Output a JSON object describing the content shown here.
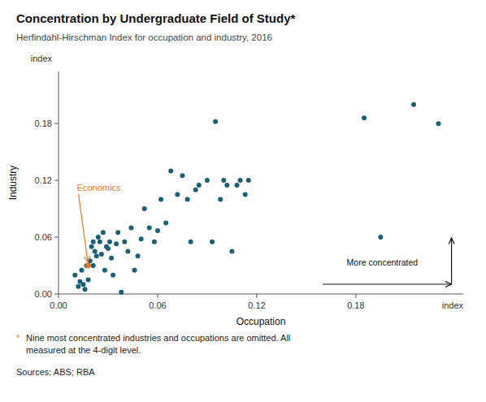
{
  "chart_data": {
    "type": "scatter",
    "title": "Concentration by Undergraduate Field of Study*",
    "subtitle": "Herfindahl-Hirschman Index for occupation and industry, 2016",
    "x_label": "Occupation",
    "y_label": "Industry",
    "x_unit": "index",
    "y_unit": "index",
    "color": "#1b5e75",
    "x": [
      0.01,
      0.012,
      0.013,
      0.014,
      0.015,
      0.016,
      0.017,
      0.018,
      0.019,
      0.02,
      0.021,
      0.021,
      0.022,
      0.023,
      0.024,
      0.025,
      0.026,
      0.027,
      0.028,
      0.029,
      0.03,
      0.031,
      0.032,
      0.033,
      0.035,
      0.036,
      0.038,
      0.04,
      0.042,
      0.044,
      0.046,
      0.048,
      0.05,
      0.052,
      0.055,
      0.058,
      0.06,
      0.062,
      0.065,
      0.068,
      0.072,
      0.075,
      0.078,
      0.08,
      0.083,
      0.085,
      0.09,
      0.093,
      0.095,
      0.098,
      0.1,
      0.102,
      0.105,
      0.108,
      0.11,
      0.113,
      0.115,
      0.185,
      0.195,
      0.215,
      0.23
    ],
    "values": [
      0.02,
      0.008,
      0.013,
      0.025,
      0.01,
      0.005,
      0.03,
      0.015,
      0.035,
      0.05,
      0.055,
      0.03,
      0.045,
      0.04,
      0.06,
      0.055,
      0.042,
      0.065,
      0.025,
      0.05,
      0.048,
      0.055,
      0.038,
      0.02,
      0.053,
      0.065,
      0.002,
      0.055,
      0.045,
      0.07,
      0.025,
      0.04,
      0.058,
      0.09,
      0.07,
      0.055,
      0.067,
      0.1,
      0.075,
      0.13,
      0.105,
      0.125,
      0.1,
      0.055,
      0.11,
      0.115,
      0.12,
      0.055,
      0.182,
      0.1,
      0.12,
      0.115,
      0.045,
      0.115,
      0.12,
      0.105,
      0.12,
      0.186,
      0.06,
      0.2,
      0.18
    ],
    "annotations": [
      {
        "text": "Economics",
        "x": 0.018,
        "y": 0.03,
        "color": "#e87722"
      },
      {
        "text": "More concentrated"
      }
    ],
    "xlim": [
      0.0,
      0.245
    ],
    "ylim": [
      0.0,
      0.235
    ],
    "xticks": [
      {
        "value": 0.0,
        "label": "0.00"
      },
      0.06,
      0.12,
      0.18
    ],
    "yticks": [
      {
        "value": 0.0,
        "label": "0.00"
      },
      0.06,
      0.12,
      0.18
    ],
    "grid": false,
    "footnote_marker": "*",
    "footnote": "Nine most concentrated industries and occupations are omitted.  All\nmeasured at the 4-digit level.",
    "sources": "Sources:  ABS; RBA"
  }
}
